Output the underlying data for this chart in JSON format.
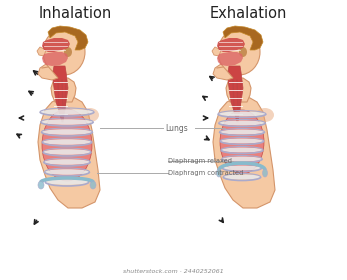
{
  "title_left": "Inhalation",
  "title_right": "Exhalation",
  "title_fontsize": 10.5,
  "skin_color": "#F5C9A3",
  "skin_outline": "#D4956A",
  "skin_shadow": "#E8A87C",
  "lung_fill": "#E87878",
  "lung_light": "#F0A0A0",
  "rib_white": "#E8E8E8",
  "rib_outline": "#AAAACC",
  "rib_shadow": "#BBBBDD",
  "throat_red": "#CC4444",
  "throat_pink": "#DD6666",
  "hair_brown": "#A86820",
  "hair_light": "#C4882A",
  "diaphragm_blue": "#88BBCC",
  "muscle_red": "#BB4444",
  "label_gray": "#666666",
  "line_gray": "#AAAAAA",
  "arrow_dark": "#222222",
  "bg": "#FFFFFF",
  "watermark": "shutterstock.com · 2440252061"
}
